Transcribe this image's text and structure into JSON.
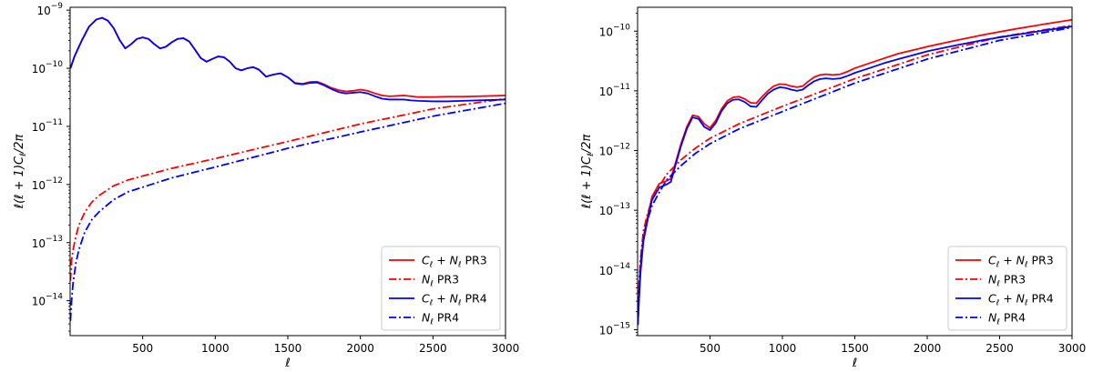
{
  "chart_data": [
    {
      "type": "line",
      "xlabel": "ℓ",
      "ylabel": "ℓ(ℓ + 1)C",
      "ylabel_sub": "ℓ",
      "ylabel_tail": "/2π",
      "yscale": "log",
      "xlim": [
        0,
        3000
      ],
      "ylim_exp": [
        -14.6,
        -8.95
      ],
      "xticks": [
        500,
        1000,
        1500,
        2000,
        2500,
        3000
      ],
      "yticks_exp": [
        -14,
        -13,
        -12,
        -11,
        -10,
        -9
      ],
      "legend_position": "lower-right",
      "legend": [
        {
          "main": "C",
          "sub": "ℓ",
          "mid": " + N",
          "sub2": "ℓ",
          "tail": " PR3",
          "color": "#ff0000",
          "dash": "solid"
        },
        {
          "main": "N",
          "sub": "ℓ",
          "mid": "",
          "sub2": "",
          "tail": " PR3",
          "color": "#ff0000",
          "dash": "dashdot"
        },
        {
          "main": "C",
          "sub": "ℓ",
          "mid": " + N",
          "sub2": "ℓ",
          "tail": " PR4",
          "color": "#0000ff",
          "dash": "solid"
        },
        {
          "main": "N",
          "sub": "ℓ",
          "mid": "",
          "sub2": "",
          "tail": " PR4",
          "color": "#0000ff",
          "dash": "dashdot"
        }
      ],
      "series": [
        {
          "name": "C_l+N_l PR3",
          "color": "#ff0000",
          "dash": "solid",
          "x": [
            2,
            30,
            80,
            130,
            180,
            220,
            260,
            300,
            340,
            380,
            420,
            460,
            500,
            540,
            580,
            620,
            660,
            700,
            740,
            780,
            820,
            860,
            900,
            940,
            980,
            1020,
            1060,
            1100,
            1140,
            1180,
            1220,
            1260,
            1300,
            1350,
            1400,
            1450,
            1500,
            1550,
            1600,
            1650,
            1700,
            1750,
            1800,
            1850,
            1900,
            1950,
            2000,
            2050,
            2100,
            2150,
            2200,
            2250,
            2300,
            2350,
            2400,
            2500,
            2600,
            2700,
            2800,
            2900,
            3000
          ],
          "y": [
            1e-10,
            1.6e-10,
            3e-10,
            5.2e-10,
            6.9e-10,
            7.4e-10,
            6.6e-10,
            4.9e-10,
            3.1e-10,
            2.2e-10,
            2.6e-10,
            3.2e-10,
            3.4e-10,
            3.2e-10,
            2.6e-10,
            2.2e-10,
            2.35e-10,
            2.8e-10,
            3.2e-10,
            3.3e-10,
            2.9e-10,
            2.1e-10,
            1.5e-10,
            1.3e-10,
            1.45e-10,
            1.6e-10,
            1.55e-10,
            1.3e-10,
            1e-10,
            9.2e-11,
            1e-10,
            1.05e-10,
            9.5e-11,
            7.2e-11,
            7.8e-11,
            8.2e-11,
            7e-11,
            5.6e-11,
            5.4e-11,
            5.8e-11,
            5.9e-11,
            5.3e-11,
            4.6e-11,
            4.2e-11,
            4e-11,
            4.1e-11,
            4.3e-11,
            4.1e-11,
            3.7e-11,
            3.4e-11,
            3.3e-11,
            3.35e-11,
            3.4e-11,
            3.3e-11,
            3.2e-11,
            3.2e-11,
            3.25e-11,
            3.25e-11,
            3.3e-11,
            3.35e-11,
            3.4e-11
          ]
        },
        {
          "name": "N_l PR3",
          "color": "#ff0000",
          "dash": "dashdot",
          "x": [
            2,
            10,
            20,
            40,
            60,
            100,
            150,
            200,
            300,
            400,
            500,
            700,
            1000,
            1500,
            2000,
            2500,
            3000
          ],
          "y": [
            2.2e-14,
            5e-14,
            7.5e-14,
            1.3e-13,
            2e-13,
            3.3e-13,
            5e-13,
            6.5e-13,
            9.5e-13,
            1.2e-12,
            1.4e-12,
            1.9e-12,
            2.8e-12,
            5.5e-12,
            1.1e-11,
            2e-11,
            3e-11
          ]
        },
        {
          "name": "C_l+N_l PR4",
          "color": "#0000ff",
          "dash": "solid",
          "x": [
            2,
            30,
            80,
            130,
            180,
            220,
            260,
            300,
            340,
            380,
            420,
            460,
            500,
            540,
            580,
            620,
            660,
            700,
            740,
            780,
            820,
            860,
            900,
            940,
            980,
            1020,
            1060,
            1100,
            1140,
            1180,
            1220,
            1260,
            1300,
            1350,
            1400,
            1450,
            1500,
            1550,
            1600,
            1650,
            1700,
            1750,
            1800,
            1850,
            1900,
            1950,
            2000,
            2050,
            2100,
            2150,
            2200,
            2250,
            2300,
            2350,
            2400,
            2500,
            2600,
            2700,
            2800,
            2900,
            3000
          ],
          "y": [
            1e-10,
            1.6e-10,
            3e-10,
            5.2e-10,
            6.9e-10,
            7.4e-10,
            6.6e-10,
            4.9e-10,
            3.1e-10,
            2.2e-10,
            2.6e-10,
            3.2e-10,
            3.4e-10,
            3.2e-10,
            2.6e-10,
            2.2e-10,
            2.35e-10,
            2.8e-10,
            3.2e-10,
            3.3e-10,
            2.9e-10,
            2.1e-10,
            1.5e-10,
            1.3e-10,
            1.45e-10,
            1.6e-10,
            1.55e-10,
            1.3e-10,
            1e-10,
            9.2e-11,
            1e-10,
            1.05e-10,
            9.5e-11,
            7.2e-11,
            7.8e-11,
            8.2e-11,
            7e-11,
            5.5e-11,
            5.3e-11,
            5.6e-11,
            5.7e-11,
            5.1e-11,
            4.4e-11,
            3.9e-11,
            3.7e-11,
            3.8e-11,
            3.9e-11,
            3.7e-11,
            3.3e-11,
            3e-11,
            2.9e-11,
            2.9e-11,
            2.9e-11,
            2.8e-11,
            2.75e-11,
            2.7e-11,
            2.7e-11,
            2.75e-11,
            2.8e-11,
            2.85e-11,
            2.9e-11
          ]
        },
        {
          "name": "N_l PR4",
          "color": "#0000ff",
          "dash": "dashdot",
          "x": [
            2,
            10,
            20,
            40,
            60,
            100,
            150,
            200,
            300,
            400,
            500,
            700,
            1000,
            1500,
            2000,
            2500,
            3000
          ],
          "y": [
            4.5e-15,
            1e-14,
            2e-14,
            4.5e-14,
            7.5e-14,
            1.5e-13,
            2.5e-13,
            3.4e-13,
            5.5e-13,
            7.5e-13,
            9e-13,
            1.3e-12,
            2e-12,
            4.2e-12,
            8e-12,
            1.5e-11,
            2.5e-11
          ]
        }
      ]
    },
    {
      "type": "line",
      "xlabel": "ℓ",
      "ylabel": "ℓ(ℓ + 1)C",
      "ylabel_sub": "ℓ",
      "ylabel_tail": "/2π",
      "yscale": "log",
      "xlim": [
        0,
        3000
      ],
      "ylim_exp": [
        -15.1,
        -9.6
      ],
      "xticks": [
        500,
        1000,
        1500,
        2000,
        2500,
        3000
      ],
      "yticks_exp": [
        -15,
        -14,
        -13,
        -12,
        -11,
        -10
      ],
      "legend_position": "lower-right",
      "legend": [
        {
          "main": "C",
          "sub": "ℓ",
          "mid": " + N",
          "sub2": "ℓ",
          "tail": " PR3",
          "color": "#ff0000",
          "dash": "solid"
        },
        {
          "main": "N",
          "sub": "ℓ",
          "mid": "",
          "sub2": "",
          "tail": " PR3",
          "color": "#ff0000",
          "dash": "dashdot"
        },
        {
          "main": "C",
          "sub": "ℓ",
          "mid": " + N",
          "sub2": "ℓ",
          "tail": " PR4",
          "color": "#0000ff",
          "dash": "solid"
        },
        {
          "main": "N",
          "sub": "ℓ",
          "mid": "",
          "sub2": "",
          "tail": " PR4",
          "color": "#0000ff",
          "dash": "dashdot"
        }
      ],
      "series": [
        {
          "name": "C_l+N_l PR3",
          "color": "#ff0000",
          "dash": "solid",
          "x": [
            2,
            10,
            20,
            40,
            70,
            100,
            150,
            200,
            230,
            260,
            300,
            340,
            380,
            420,
            460,
            500,
            540,
            580,
            620,
            660,
            700,
            740,
            780,
            820,
            860,
            900,
            940,
            980,
            1020,
            1060,
            1100,
            1140,
            1180,
            1220,
            1260,
            1300,
            1350,
            1400,
            1450,
            1500,
            1600,
            1700,
            1800,
            2000,
            2200,
            2400,
            2600,
            2800,
            3000
          ],
          "y": [
            1.3e-15,
            3.5e-15,
            1e-14,
            3.5e-14,
            8e-14,
            1.7e-13,
            2.8e-13,
            3.1e-13,
            3.4e-13,
            6e-13,
            1.3e-12,
            2.5e-12,
            3.9e-12,
            3.7e-12,
            2.8e-12,
            2.4e-12,
            3.2e-12,
            5e-12,
            6.8e-12,
            7.8e-12,
            8e-12,
            7.3e-12,
            6.3e-12,
            6.2e-12,
            8e-12,
            1e-11,
            1.2e-11,
            1.3e-11,
            1.28e-11,
            1.2e-11,
            1.15e-11,
            1.2e-11,
            1.45e-11,
            1.7e-11,
            1.85e-11,
            1.9e-11,
            1.85e-11,
            1.9e-11,
            2.1e-11,
            2.4e-11,
            2.9e-11,
            3.5e-11,
            4.2e-11,
            5.5e-11,
            7e-11,
            8.8e-11,
            1.08e-10,
            1.3e-10,
            1.55e-10
          ]
        },
        {
          "name": "N_l PR3",
          "color": "#ff0000",
          "dash": "dashdot",
          "x": [
            2,
            10,
            20,
            40,
            70,
            100,
            150,
            200,
            300,
            400,
            500,
            700,
            1000,
            1500,
            2000,
            2500,
            3000
          ],
          "y": [
            1.5e-15,
            6e-15,
            1.5e-14,
            4.5e-14,
            9e-14,
            1.5e-13,
            2.5e-13,
            4e-13,
            7e-13,
            1.1e-12,
            1.6e-12,
            2.8e-12,
            5.5e-12,
            1.6e-11,
            4e-11,
            8e-11,
            1.25e-10
          ]
        },
        {
          "name": "C_l+N_l PR4",
          "color": "#0000ff",
          "dash": "solid",
          "x": [
            2,
            10,
            20,
            40,
            70,
            100,
            150,
            200,
            230,
            260,
            300,
            340,
            380,
            420,
            460,
            500,
            540,
            580,
            620,
            660,
            700,
            740,
            780,
            820,
            860,
            900,
            940,
            980,
            1020,
            1060,
            1100,
            1140,
            1180,
            1220,
            1260,
            1300,
            1350,
            1400,
            1450,
            1500,
            1600,
            1700,
            1800,
            2000,
            2200,
            2400,
            2600,
            2800,
            3000
          ],
          "y": [
            1.2e-15,
            3.2e-15,
            9e-15,
            3e-14,
            7e-14,
            1.5e-13,
            2.4e-13,
            2.7e-13,
            3e-13,
            5.5e-13,
            1.2e-12,
            2.3e-12,
            3.6e-12,
            3.4e-12,
            2.5e-12,
            2.2e-12,
            2.9e-12,
            4.6e-12,
            6.2e-12,
            7.1e-12,
            7.2e-12,
            6.5e-12,
            5.5e-12,
            5.4e-12,
            7e-12,
            9e-12,
            1.05e-11,
            1.15e-11,
            1.12e-11,
            1.05e-11,
            1e-11,
            1.05e-11,
            1.25e-11,
            1.45e-11,
            1.58e-11,
            1.62e-11,
            1.58e-11,
            1.62e-11,
            1.78e-11,
            2e-11,
            2.4e-11,
            2.9e-11,
            3.4e-11,
            4.6e-11,
            5.8e-11,
            7.2e-11,
            8.6e-11,
            1.02e-10,
            1.2e-10
          ]
        },
        {
          "name": "N_l PR4",
          "color": "#0000ff",
          "dash": "dashdot",
          "x": [
            2,
            10,
            20,
            40,
            70,
            100,
            150,
            200,
            300,
            400,
            500,
            700,
            1000,
            1500,
            2000,
            2500,
            3000
          ],
          "y": [
            1.2e-15,
            4.5e-15,
            1.2e-14,
            3.5e-14,
            7e-14,
            1.2e-13,
            2e-13,
            3.2e-13,
            5.6e-13,
            9e-13,
            1.3e-12,
            2.3e-12,
            4.5e-12,
            1.35e-11,
            3.4e-11,
            7e-11,
            1.15e-10
          ]
        }
      ]
    }
  ]
}
